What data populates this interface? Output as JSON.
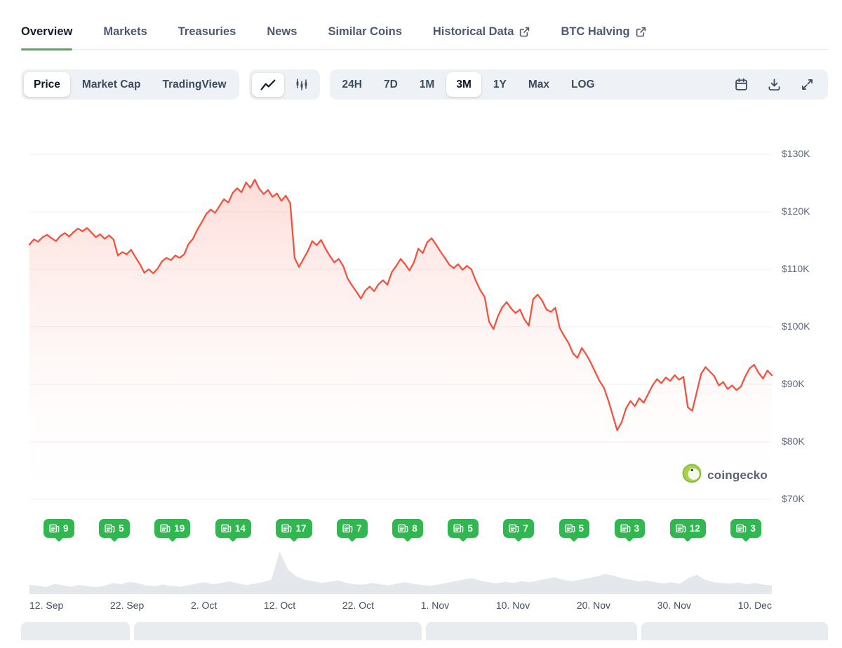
{
  "colors": {
    "accent_green": "#4caf50",
    "line_red": "#f4523e",
    "fill_red_top": "rgba(246,85,66,0.20)",
    "fill_red_bottom": "rgba(255,255,255,0)",
    "badge_green": "#30b750",
    "volume_gray": "#e4e8ec"
  },
  "tabs": {
    "items": [
      {
        "label": "Overview",
        "active": true,
        "external": false
      },
      {
        "label": "Markets",
        "active": false,
        "external": false
      },
      {
        "label": "Treasuries",
        "active": false,
        "external": false
      },
      {
        "label": "News",
        "active": false,
        "external": false
      },
      {
        "label": "Similar Coins",
        "active": false,
        "external": false
      },
      {
        "label": "Historical Data",
        "active": false,
        "external": true
      },
      {
        "label": "BTC Halving",
        "active": false,
        "external": true
      }
    ]
  },
  "toolbar": {
    "metric_buttons": [
      {
        "label": "Price",
        "selected": true
      },
      {
        "label": "Market Cap",
        "selected": false
      },
      {
        "label": "TradingView",
        "selected": false
      }
    ],
    "chart_type_buttons": [
      {
        "icon": "line-chart-icon",
        "selected": true
      },
      {
        "icon": "candlestick-icon",
        "selected": false
      }
    ],
    "range_buttons": [
      {
        "label": "24H",
        "selected": false
      },
      {
        "label": "7D",
        "selected": false
      },
      {
        "label": "1M",
        "selected": false
      },
      {
        "label": "3M",
        "selected": true
      },
      {
        "label": "1Y",
        "selected": false
      },
      {
        "label": "Max",
        "selected": false
      },
      {
        "label": "LOG",
        "selected": false
      }
    ],
    "icon_buttons": [
      "calendar-icon",
      "download-icon",
      "expand-icon"
    ]
  },
  "watermark": {
    "label": "coingecko"
  },
  "news_badges": {
    "counts": [
      9,
      5,
      19,
      14,
      17,
      7,
      8,
      5,
      7,
      5,
      3,
      12,
      3
    ]
  },
  "chart_data": {
    "type": "line",
    "title": "Bitcoin price, 3M range (USD)",
    "ylim": [
      70,
      130
    ],
    "unit": "thousand USD",
    "grid": true,
    "y_ticks": {
      "labels": [
        "$130K",
        "$120K",
        "$110K",
        "$100K",
        "$90K",
        "$80K",
        "$70K"
      ],
      "values": [
        130,
        120,
        110,
        100,
        90,
        80,
        70
      ]
    },
    "x_tick_labels": [
      "12. Sep",
      "22. Sep",
      "2. Oct",
      "12. Oct",
      "22. Oct",
      "1. Nov",
      "10. Nov",
      "20. Nov",
      "30. Nov",
      "10. Dec"
    ],
    "series": [
      {
        "name": "price",
        "values": [
          114.3,
          115.2,
          114.8,
          115.6,
          116.0,
          115.4,
          114.9,
          115.8,
          116.3,
          115.7,
          116.5,
          117.1,
          116.6,
          117.2,
          116.4,
          115.6,
          116.1,
          115.3,
          115.9,
          115.2,
          112.4,
          113.0,
          112.6,
          113.4,
          112.1,
          110.9,
          109.4,
          110.0,
          109.3,
          110.1,
          111.4,
          112.0,
          111.6,
          112.4,
          112.0,
          112.6,
          114.4,
          115.3,
          116.9,
          118.2,
          119.6,
          120.4,
          119.8,
          121.0,
          122.2,
          121.6,
          123.3,
          124.1,
          123.4,
          125.1,
          124.2,
          125.6,
          124.0,
          123.1,
          123.8,
          122.6,
          123.2,
          121.9,
          122.8,
          121.5,
          112.0,
          110.4,
          111.8,
          113.2,
          114.9,
          114.2,
          115.1,
          113.6,
          112.3,
          111.2,
          111.8,
          110.6,
          108.4,
          107.2,
          106.1,
          104.9,
          106.3,
          107.0,
          106.2,
          107.4,
          108.1,
          107.3,
          109.5,
          110.6,
          111.8,
          110.9,
          109.8,
          111.2,
          113.6,
          112.8,
          114.7,
          115.4,
          114.3,
          113.1,
          112.0,
          110.8,
          110.2,
          110.9,
          109.9,
          110.6,
          110.0,
          108.0,
          106.4,
          105.2,
          100.9,
          99.6,
          101.8,
          103.4,
          104.3,
          103.2,
          102.4,
          103.0,
          101.3,
          100.2,
          104.8,
          105.6,
          104.6,
          103.0,
          102.6,
          103.3,
          99.8,
          98.4,
          97.2,
          95.4,
          94.6,
          96.3,
          95.2,
          93.8,
          92.2,
          90.6,
          89.4,
          87.2,
          84.6,
          82.0,
          83.4,
          85.8,
          87.1,
          86.2,
          87.6,
          86.8,
          88.3,
          89.8,
          90.9,
          90.2,
          91.2,
          90.6,
          91.6,
          90.8,
          91.3,
          86.0,
          85.4,
          88.6,
          91.8,
          93.0,
          92.2,
          91.4,
          89.8,
          90.4,
          89.2,
          89.8,
          89.0,
          89.6,
          91.4,
          92.8,
          93.4,
          92.0,
          91.0,
          92.4,
          91.6
        ]
      }
    ],
    "volume": {
      "name": "volume-normalized",
      "values": [
        0.18,
        0.15,
        0.12,
        0.2,
        0.16,
        0.13,
        0.17,
        0.14,
        0.12,
        0.15,
        0.22,
        0.19,
        0.25,
        0.21,
        0.16,
        0.14,
        0.18,
        0.15,
        0.13,
        0.16,
        0.2,
        0.24,
        0.19,
        0.22,
        0.26,
        0.21,
        0.17,
        0.2,
        0.24,
        0.3,
        1.0,
        0.55,
        0.38,
        0.3,
        0.26,
        0.22,
        0.25,
        0.28,
        0.22,
        0.19,
        0.18,
        0.22,
        0.19,
        0.16,
        0.2,
        0.24,
        0.2,
        0.17,
        0.15,
        0.18,
        0.22,
        0.26,
        0.3,
        0.34,
        0.28,
        0.24,
        0.21,
        0.25,
        0.22,
        0.26,
        0.24,
        0.28,
        0.32,
        0.36,
        0.3,
        0.26,
        0.3,
        0.34,
        0.38,
        0.44,
        0.4,
        0.34,
        0.3,
        0.26,
        0.28,
        0.24,
        0.21,
        0.24,
        0.2,
        0.34,
        0.42,
        0.3,
        0.24,
        0.22,
        0.2,
        0.23,
        0.19,
        0.22,
        0.18,
        0.16
      ]
    }
  }
}
